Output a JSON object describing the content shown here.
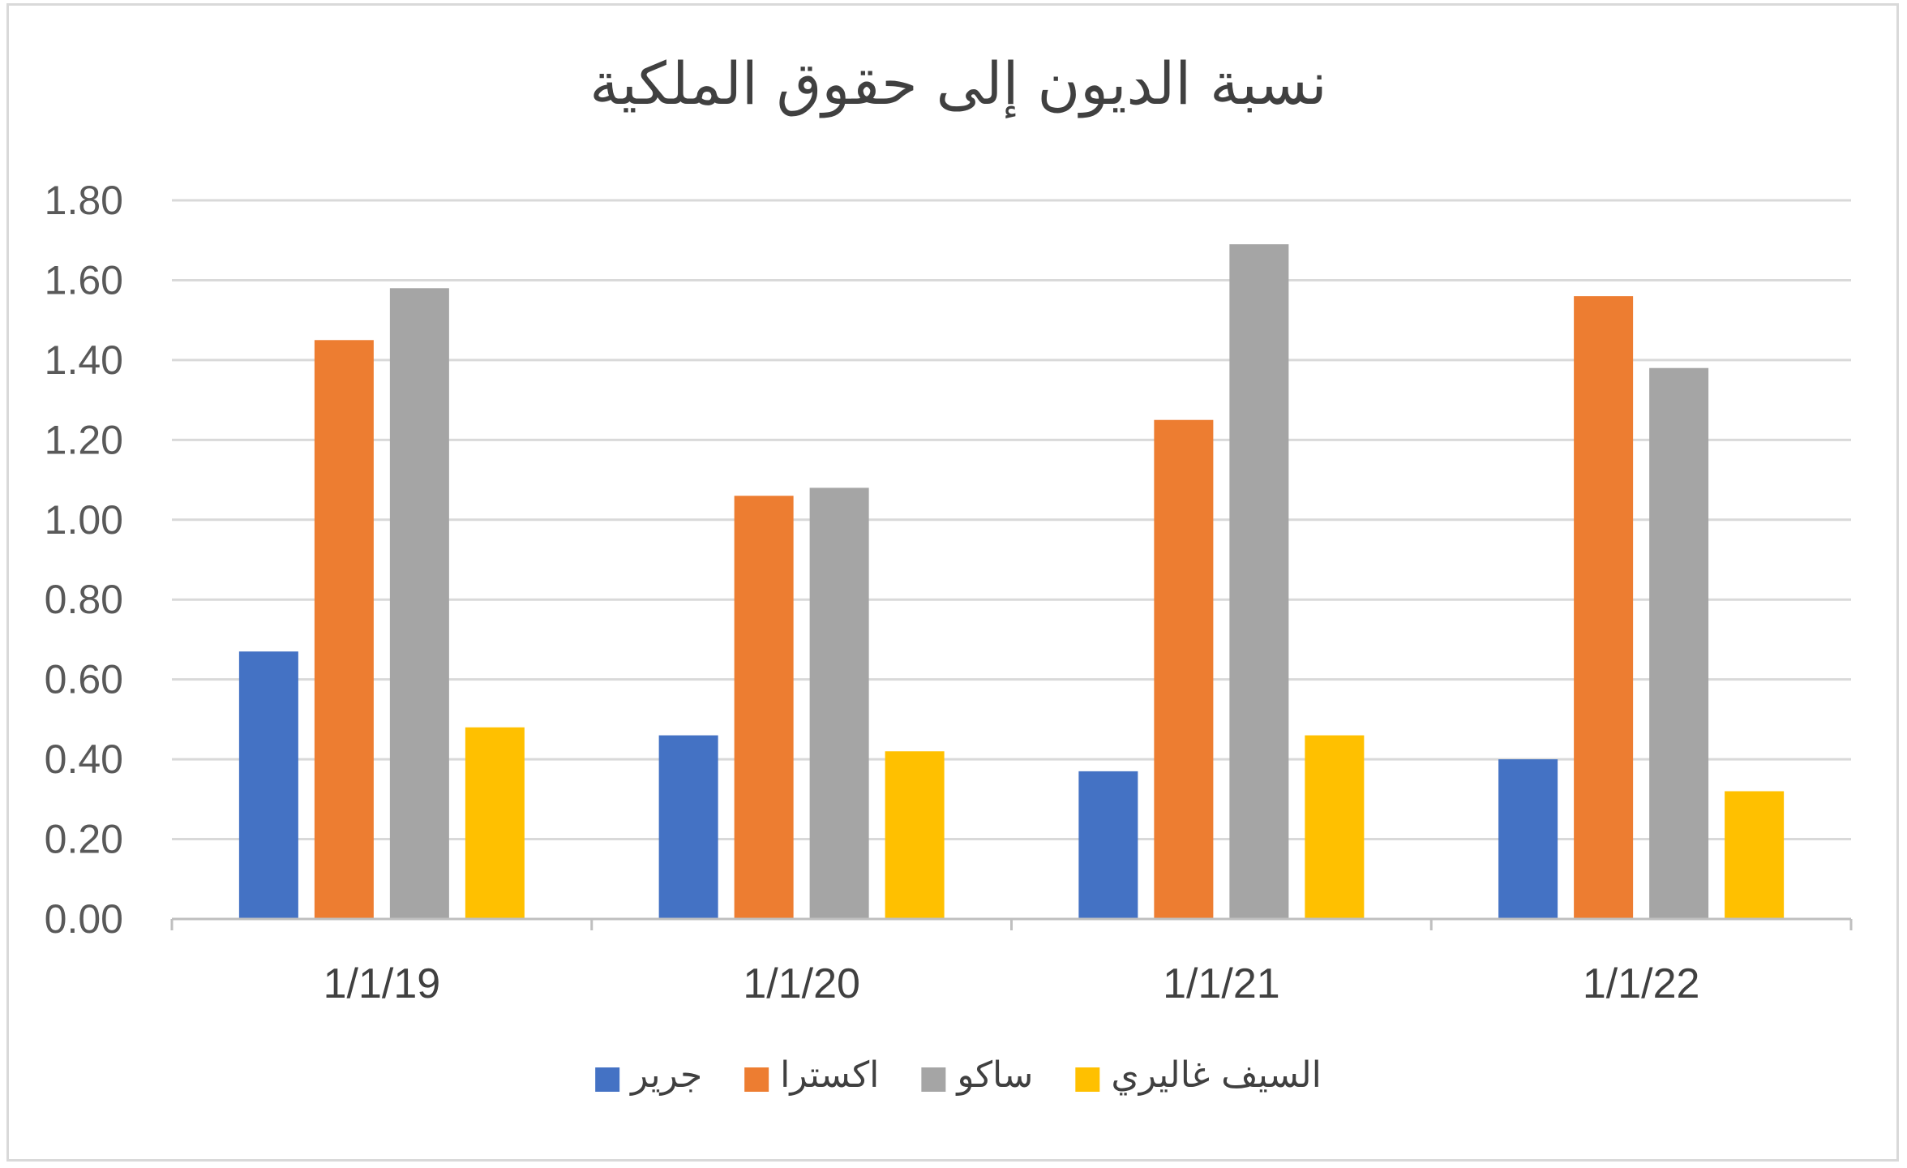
{
  "chart_data": {
    "type": "bar",
    "title": "نسبة الديون إلى حقوق الملكية",
    "xlabel": "",
    "ylabel": "",
    "categories": [
      "1/1/19",
      "1/1/20",
      "1/1/21",
      "1/1/22"
    ],
    "ylim": [
      0,
      1.8
    ],
    "yticks": [
      "0.00",
      "0.20",
      "0.40",
      "0.60",
      "0.80",
      "1.00",
      "1.20",
      "1.40",
      "1.60",
      "1.80"
    ],
    "grid": true,
    "legend_position": "bottom",
    "series": [
      {
        "name": "جرير",
        "color": "#4472c4",
        "values": [
          0.67,
          0.46,
          0.37,
          0.4
        ]
      },
      {
        "name": "اكسترا",
        "color": "#ed7d31",
        "values": [
          1.45,
          1.06,
          1.25,
          1.56
        ]
      },
      {
        "name": "ساكو",
        "color": "#a5a5a5",
        "values": [
          1.58,
          1.08,
          1.69,
          1.38
        ]
      },
      {
        "name": "السيف غاليري",
        "color": "#ffc000",
        "values": [
          0.48,
          0.42,
          0.46,
          0.32
        ]
      }
    ]
  }
}
